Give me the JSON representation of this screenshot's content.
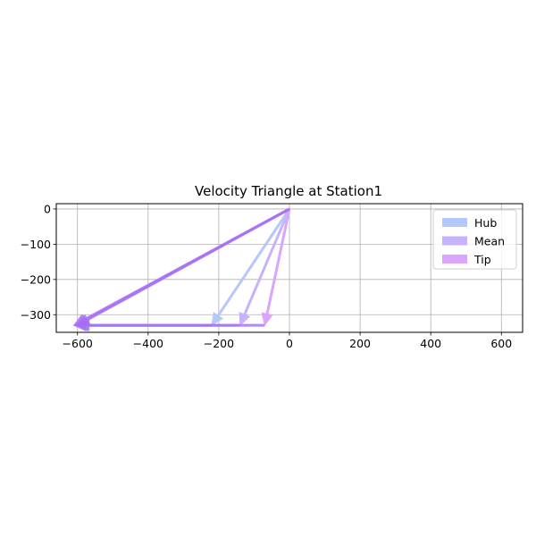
{
  "chart_data": {
    "type": "quiver",
    "title": "Velocity Triangle at Station1",
    "xlabel": "",
    "ylabel": "",
    "xlim": [
      -660,
      660
    ],
    "ylim": [
      -350,
      15
    ],
    "xticks": [
      -600,
      -400,
      -200,
      0,
      200,
      400,
      600
    ],
    "yticks": [
      0,
      -100,
      -200,
      -300
    ],
    "grid": true,
    "legend_position": "upper-right",
    "series": [
      {
        "name": "Hub",
        "color": "#b3c9fb",
        "vectors": [
          {
            "from": [
              0,
              0
            ],
            "to": [
              -220,
              -330
            ]
          },
          {
            "from": [
              0,
              0
            ],
            "to": [
              -600,
              -330
            ]
          },
          {
            "from": [
              -220,
              -330
            ],
            "to": [
              -600,
              -330
            ]
          }
        ]
      },
      {
        "name": "Mean",
        "color": "#c7b3fb",
        "vectors": [
          {
            "from": [
              0,
              0
            ],
            "to": [
              -140,
              -330
            ]
          },
          {
            "from": [
              0,
              0
            ],
            "to": [
              -605,
              -330
            ]
          },
          {
            "from": [
              -140,
              -330
            ],
            "to": [
              -605,
              -330
            ]
          }
        ]
      },
      {
        "name": "Tip",
        "color": "#d9a6fb",
        "vectors": [
          {
            "from": [
              0,
              0
            ],
            "to": [
              -70,
              -330
            ]
          },
          {
            "from": [
              0,
              0
            ],
            "to": [
              -610,
              -330
            ]
          },
          {
            "from": [
              -70,
              -330
            ],
            "to": [
              -610,
              -330
            ]
          }
        ]
      }
    ],
    "overlay_color": "#a66cf5"
  }
}
